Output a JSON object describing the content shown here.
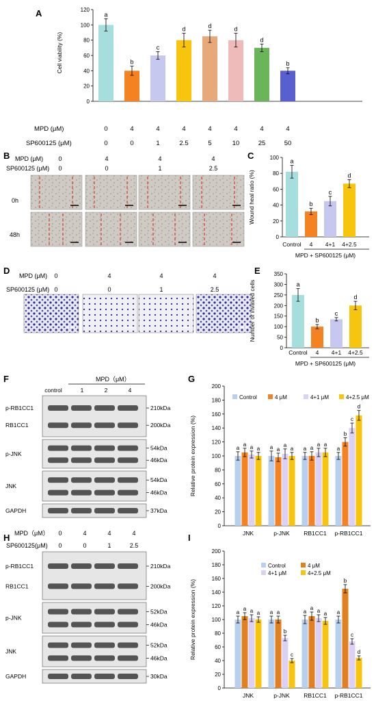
{
  "panels": {
    "A": {
      "label": "A",
      "rows": [
        {
          "name": "MPD (μM)",
          "values": [
            "0",
            "4",
            "4",
            "4",
            "4",
            "4",
            "4",
            "4"
          ]
        },
        {
          "name": "SP600125 (μM)",
          "values": [
            "0",
            "0",
            "1",
            "2.5",
            "5",
            "10",
            "25",
            "50"
          ]
        }
      ]
    },
    "B": {
      "label": "B",
      "rows": [
        {
          "name": "MPD (μM)",
          "values": [
            "0",
            "4",
            "4",
            "4"
          ]
        },
        {
          "name": "SP600125 (μM)",
          "values": [
            "0",
            "0",
            "1",
            "2.5"
          ]
        }
      ],
      "time_labels": [
        "0h",
        "48h"
      ]
    },
    "C": {
      "label": "C",
      "xlabel": "MPD + SP600125 (μM)"
    },
    "D": {
      "label": "D",
      "rows": [
        {
          "name": "MPD (μM)",
          "values": [
            "0",
            "4",
            "4",
            "4"
          ]
        },
        {
          "name": "SP600125 (μM)",
          "values": [
            "0",
            "0",
            "1",
            "2.5"
          ]
        }
      ]
    },
    "E": {
      "label": "E",
      "xlabel": "MPD + SP600125 (μM)"
    },
    "F": {
      "label": "F",
      "header": "MPD（μM）",
      "lanes": [
        "control",
        "1",
        "2",
        "4"
      ],
      "blots": [
        {
          "labels": [
            "p-RB1CC1",
            "RB1CC1"
          ],
          "markers": [
            "210kDa",
            "200kDa"
          ]
        },
        {
          "labels": [
            "p-JNK"
          ],
          "markers": [
            "54kDa",
            "46kDa"
          ]
        },
        {
          "labels": [
            "JNK"
          ],
          "markers": [
            "54kDa",
            "46kDa"
          ]
        },
        {
          "labels": [
            "GAPDH"
          ],
          "markers": [
            "37kDa"
          ]
        }
      ]
    },
    "G": {
      "label": "G"
    },
    "H": {
      "label": "H",
      "rows": [
        {
          "name": "MPD（μM）",
          "values": [
            "0",
            "4",
            "4",
            "4"
          ]
        },
        {
          "name": "SP600125(μM)",
          "values": [
            "0",
            "0",
            "1",
            "2.5"
          ]
        }
      ],
      "blots": [
        {
          "labels": [
            "p-RB1CC1",
            "RB1CC1"
          ],
          "markers": [
            "210kDa",
            "200kDa"
          ]
        },
        {
          "labels": [
            "p-JNK"
          ],
          "markers": [
            "52kDa",
            "46kDa"
          ]
        },
        {
          "labels": [
            "JNK"
          ],
          "markers": [
            "52kDa",
            "46kDa"
          ]
        },
        {
          "labels": [
            "GAPDH"
          ],
          "markers": [
            "30kDa"
          ]
        }
      ]
    },
    "I": {
      "label": "I"
    }
  },
  "chart_data": [
    {
      "id": "A",
      "type": "bar",
      "ylabel": "Cell viability (%)",
      "ylim": [
        0,
        120
      ],
      "yticks": [
        0,
        20,
        40,
        60,
        80,
        100,
        120
      ],
      "categories": [
        "1",
        "2",
        "3",
        "4",
        "5",
        "6",
        "7",
        "8"
      ],
      "values": [
        100,
        40,
        60,
        80,
        85,
        80,
        70,
        40
      ],
      "errors": [
        8,
        6,
        5,
        9,
        8,
        9,
        5,
        4
      ],
      "letters": [
        "a",
        "b",
        "c",
        "d",
        "d",
        "d",
        "d",
        "b"
      ],
      "colors": [
        "#a6dede",
        "#f58220",
        "#c6c8f0",
        "#f7c40e",
        "#e8a97a",
        "#eebaba",
        "#6ab45a",
        "#5a5fd0"
      ]
    },
    {
      "id": "C",
      "type": "bar",
      "ylabel": "Wound heal ratio (%)",
      "ylim": [
        0,
        100
      ],
      "yticks": [
        0,
        20,
        40,
        60,
        80,
        100
      ],
      "categories": [
        "Control",
        "4",
        "4+1",
        "4+2.5"
      ],
      "values": [
        82,
        32,
        45,
        67
      ],
      "errors": [
        8,
        4,
        6,
        5
      ],
      "letters": [
        "a",
        "b",
        "c",
        "d"
      ],
      "colors": [
        "#a6dede",
        "#f58220",
        "#c6c8f0",
        "#f7c40e"
      ]
    },
    {
      "id": "E",
      "type": "bar",
      "ylabel": "Number of invaved cells",
      "ylim": [
        0,
        350
      ],
      "yticks": [
        0,
        50,
        100,
        150,
        200,
        250,
        300,
        350
      ],
      "categories": [
        "Control",
        "4",
        "4+1",
        "4+2.5"
      ],
      "values": [
        250,
        100,
        135,
        200
      ],
      "errors": [
        30,
        10,
        8,
        20
      ],
      "letters": [
        "a",
        "b",
        "c",
        "d"
      ],
      "colors": [
        "#a6dede",
        "#f58220",
        "#c6c8f0",
        "#f7c40e"
      ]
    },
    {
      "id": "G",
      "type": "bar",
      "ylabel": "Relative protein expression (%)",
      "ylim": [
        0,
        200
      ],
      "yticks": [
        0,
        20,
        40,
        60,
        80,
        100,
        120,
        140,
        160,
        180,
        200
      ],
      "categories": [
        "JNK",
        "p-JNK",
        "RB1CC1",
        "p-RB1CC1"
      ],
      "series": [
        {
          "name": "Control",
          "color": "#b8d0f0",
          "values": [
            100,
            100,
            100,
            100
          ],
          "errors": [
            6,
            7,
            5,
            5
          ],
          "letters": [
            "a",
            "a",
            "a",
            "a"
          ]
        },
        {
          "name": "4 μM",
          "color": "#f58220",
          "values": [
            105,
            98,
            100,
            120
          ],
          "errors": [
            6,
            6,
            6,
            6
          ],
          "letters": [
            "a",
            "a",
            "a",
            "b"
          ]
        },
        {
          "name": "4+1 μM",
          "color": "#ddd0f5",
          "values": [
            102,
            103,
            105,
            140
          ],
          "errors": [
            5,
            7,
            6,
            7
          ],
          "letters": [
            "a",
            "a",
            "a",
            "c"
          ]
        },
        {
          "name": "4+2.5 μM",
          "color": "#f7c40e",
          "values": [
            100,
            100,
            105,
            158
          ],
          "errors": [
            5,
            5,
            6,
            7
          ],
          "letters": [
            "a",
            "a",
            "a",
            "d"
          ]
        }
      ]
    },
    {
      "id": "I",
      "type": "bar",
      "ylabel": "Relative protein expression (%)",
      "ylim": [
        0,
        200
      ],
      "yticks": [
        0,
        20,
        40,
        60,
        80,
        100,
        120,
        140,
        160,
        180,
        200
      ],
      "categories": [
        "JNK",
        "p-JNK",
        "RB1CC1",
        "p-RB1CC1"
      ],
      "series": [
        {
          "name": "Control",
          "color": "#b8d0f0",
          "values": [
            100,
            100,
            100,
            100
          ],
          "errors": [
            5,
            5,
            6,
            5
          ],
          "letters": [
            "a",
            "a",
            "a",
            "a"
          ]
        },
        {
          "name": "4 μM",
          "color": "#e08020",
          "values": [
            105,
            100,
            105,
            145
          ],
          "errors": [
            5,
            5,
            6,
            6
          ],
          "letters": [
            "a",
            "a",
            "a",
            "b"
          ]
        },
        {
          "name": "4+1 μM",
          "color": "#ddd0f5",
          "values": [
            102,
            73,
            102,
            68
          ],
          "errors": [
            5,
            4,
            5,
            4
          ],
          "letters": [
            "a",
            "b",
            "a",
            "c"
          ]
        },
        {
          "name": "4+2.5 μM",
          "color": "#f7c40e",
          "values": [
            100,
            40,
            98,
            44
          ],
          "errors": [
            4,
            3,
            5,
            3
          ],
          "letters": [
            "a",
            "c",
            "a",
            "d"
          ]
        }
      ]
    }
  ]
}
